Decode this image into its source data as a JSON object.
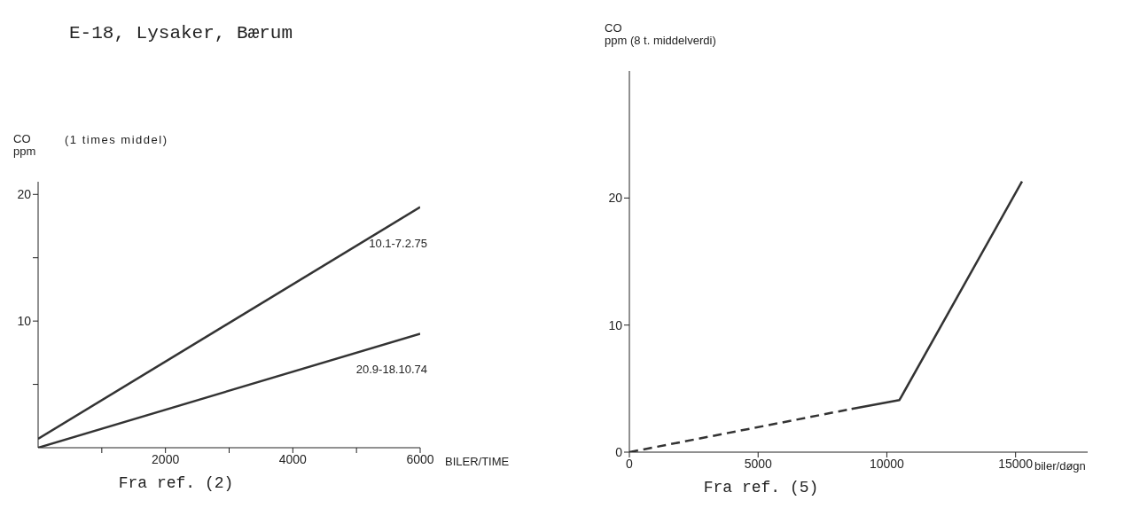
{
  "chart_data": [
    {
      "type": "line",
      "title": "E-18, Lysaker, Bærum",
      "subtitle": "(1 times middel)",
      "ylabel": "CO\nppm",
      "xlabel": "BILER/TIME",
      "annotations": [
        "Fra ref. (2)"
      ],
      "xlim": [
        0,
        6000
      ],
      "ylim": [
        0,
        21
      ],
      "xticks": [
        {
          "value": 1000,
          "label": null
        },
        2000,
        {
          "value": 3000,
          "label": null
        },
        4000,
        {
          "value": 5000,
          "label": null
        },
        6000
      ],
      "yticks": [
        {
          "value": 5,
          "label": null
        },
        10,
        {
          "value": 15,
          "label": null
        },
        20
      ],
      "grid": false,
      "legend": false,
      "series": [
        {
          "name": "10.1-7.2.75",
          "color": "#333333",
          "x": [
            0,
            6000
          ],
          "values": [
            0.7,
            19
          ]
        },
        {
          "name": "20.9-18.10.74",
          "color": "#333333",
          "x": [
            0,
            6000
          ],
          "values": [
            0,
            9
          ]
        }
      ]
    },
    {
      "type": "line",
      "ylabel": "CO\nppm (8 t. middelverdi)",
      "xlabel": "biler/døgn",
      "annotations": [
        "Fra ref. (5)"
      ],
      "xlim": [
        0,
        17800
      ],
      "ylim": [
        0,
        30
      ],
      "xticks": [
        0,
        5000,
        10000,
        15000
      ],
      "yticks": [
        0,
        10,
        20
      ],
      "grid": false,
      "legend": false,
      "series": [
        {
          "color": "#333333",
          "line_style": "dashed",
          "x": [
            0,
            8630
          ],
          "values": [
            0,
            3.4
          ]
        },
        {
          "color": "#333333",
          "line_style": "solid",
          "x": [
            8630,
            10490,
            15250
          ],
          "values": [
            3.4,
            4.1,
            21.3
          ]
        }
      ]
    }
  ]
}
